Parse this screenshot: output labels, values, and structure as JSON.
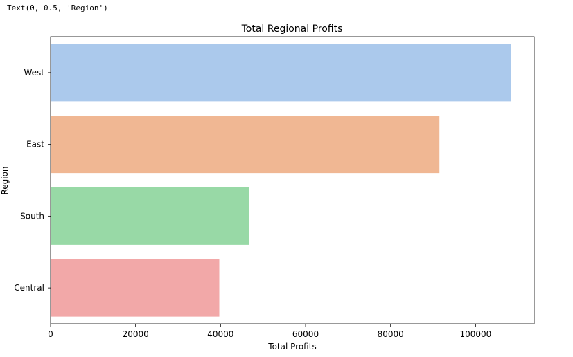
{
  "output_text": "Text(0, 0.5, 'Region')",
  "chart_data": {
    "type": "bar",
    "orientation": "horizontal",
    "title": "Total Regional Profits",
    "xlabel": "Total Profits",
    "ylabel": "Region",
    "categories": [
      "West",
      "East",
      "South",
      "Central"
    ],
    "values": [
      108400,
      91500,
      46700,
      39700
    ],
    "colors": [
      "#abc9ec",
      "#f0b793",
      "#98d9a6",
      "#f2a8a8"
    ],
    "xlim": [
      0,
      113800
    ],
    "xticks": [
      0,
      20000,
      40000,
      60000,
      80000,
      100000
    ],
    "xtick_labels": [
      "0",
      "20000",
      "40000",
      "60000",
      "80000",
      "100000"
    ],
    "grid": false,
    "legend": "none"
  }
}
